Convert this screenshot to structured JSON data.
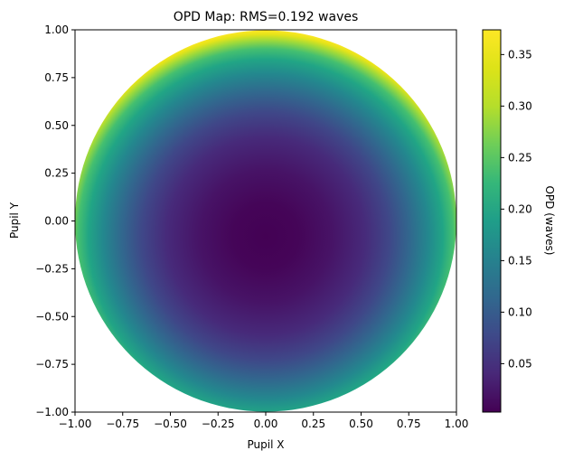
{
  "chart_data": {
    "type": "heatmap",
    "title": "OPD Map: RMS=0.192 waves",
    "xlabel": "Pupil X",
    "ylabel": "Pupil Y",
    "xlim": [
      -1.0,
      1.0
    ],
    "ylim": [
      -1.0,
      1.0
    ],
    "xticks": [
      "−1.00",
      "−0.75",
      "−0.50",
      "−0.25",
      "0.00",
      "0.25",
      "0.50",
      "0.75",
      "1.00"
    ],
    "yticks": [
      "1.00",
      "0.75",
      "0.50",
      "0.25",
      "0.00",
      "−0.25",
      "−0.50",
      "−0.75",
      "−1.00"
    ],
    "colormap": "viridis",
    "colorbar": {
      "label": "OPD (waves)",
      "range": [
        0.003,
        0.374
      ],
      "ticks": [
        "0.35",
        "0.30",
        "0.25",
        "0.20",
        "0.15",
        "0.10",
        "0.05"
      ]
    },
    "aperture": "circular",
    "center": [
      0.0,
      -0.08
    ],
    "min_value": 0.003,
    "edge_value": 0.374
  }
}
